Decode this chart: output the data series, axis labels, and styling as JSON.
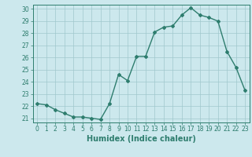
{
  "x": [
    0,
    1,
    2,
    3,
    4,
    5,
    6,
    7,
    8,
    9,
    10,
    11,
    12,
    13,
    14,
    15,
    16,
    17,
    18,
    19,
    20,
    21,
    22,
    23
  ],
  "y": [
    22.2,
    22.1,
    21.7,
    21.4,
    21.1,
    21.1,
    21.0,
    20.9,
    22.2,
    24.6,
    24.1,
    26.1,
    26.1,
    28.1,
    28.5,
    28.6,
    29.5,
    30.1,
    29.5,
    29.3,
    29.0,
    26.5,
    25.2,
    23.3
  ],
  "xlabel": "Humidex (Indice chaleur)",
  "ylim": [
    21,
    30
  ],
  "xlim": [
    0,
    23
  ],
  "yticks": [
    21,
    22,
    23,
    24,
    25,
    26,
    27,
    28,
    29,
    30
  ],
  "xticks": [
    0,
    1,
    2,
    3,
    4,
    5,
    6,
    7,
    8,
    9,
    10,
    11,
    12,
    13,
    14,
    15,
    16,
    17,
    18,
    19,
    20,
    21,
    22,
    23
  ],
  "line_color": "#2e7d6e",
  "marker": "D",
  "marker_size": 2.0,
  "bg_color": "#cce8ed",
  "grid_color": "#a0c8cc",
  "line_width": 1.0,
  "xlabel_fontsize": 7,
  "tick_fontsize": 5.5
}
